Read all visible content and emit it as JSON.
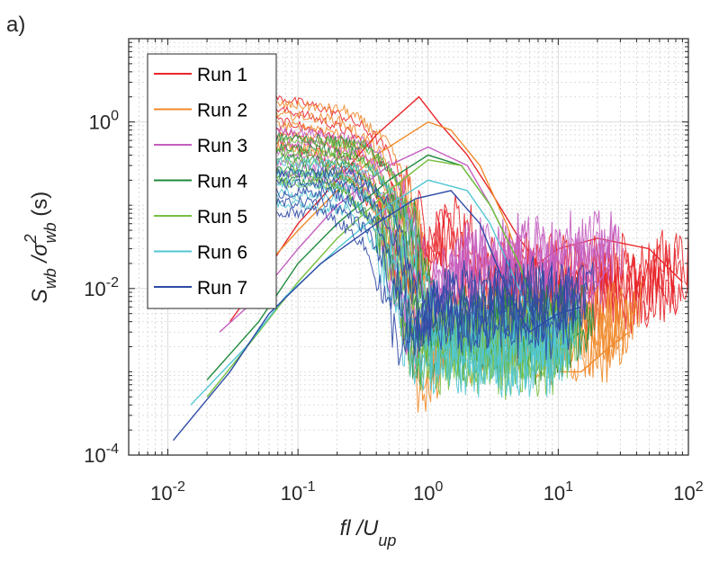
{
  "panel_label": "a)",
  "chart_data": {
    "type": "line",
    "xscale": "log",
    "yscale": "log",
    "xlim": [
      0.005,
      100
    ],
    "ylim": [
      0.0001,
      10
    ],
    "grid": "major and minor",
    "legend_placement": "top-left",
    "xlabel": {
      "main": "fl /U",
      "sub": "up"
    },
    "ylabel": {
      "main1": "S",
      "sub1": "wb",
      "main2": " /σ",
      "sup2": "2",
      "sub2": "wb",
      "tail": " (s)"
    },
    "xticks": [
      {
        "value": 0.01,
        "base": "10",
        "exp": "-2"
      },
      {
        "value": 0.1,
        "base": "10",
        "exp": "-1"
      },
      {
        "value": 1,
        "base": "10",
        "exp": "0"
      },
      {
        "value": 10,
        "base": "10",
        "exp": "1"
      },
      {
        "value": 100,
        "base": "10",
        "exp": "2"
      }
    ],
    "yticks": [
      {
        "value": 0.0001,
        "base": "10",
        "exp": "-4"
      },
      {
        "value": 0.01,
        "base": "10",
        "exp": "-2"
      },
      {
        "value": 1,
        "base": "10",
        "exp": "0"
      }
    ],
    "series": [
      {
        "name": "Run 1",
        "color": "#e8262b",
        "x": [
          0.03,
          0.05,
          0.1,
          0.2,
          0.4,
          0.85,
          1.2,
          2,
          3,
          5,
          7,
          10,
          20,
          50,
          90
        ],
        "y": [
          0.004,
          0.012,
          0.06,
          0.2,
          0.7,
          2.0,
          1.0,
          0.4,
          0.15,
          0.04,
          0.02,
          0.03,
          0.04,
          0.03,
          0.012
        ]
      },
      {
        "name": "Run 2",
        "color": "#f08a2b",
        "x": [
          0.03,
          0.05,
          0.1,
          0.2,
          0.4,
          1.0,
          1.5,
          2.5,
          4,
          6,
          8,
          10,
          15,
          25,
          35
        ],
        "y": [
          0.006,
          0.015,
          0.05,
          0.15,
          0.4,
          1.0,
          0.8,
          0.3,
          0.06,
          0.01,
          0.003,
          0.001,
          0.001,
          0.002,
          0.003
        ]
      },
      {
        "name": "Run 3",
        "color": "#c55ec0",
        "x": [
          0.025,
          0.05,
          0.1,
          0.2,
          0.5,
          1.0,
          2,
          3,
          5,
          7,
          10,
          15,
          25
        ],
        "y": [
          0.003,
          0.008,
          0.03,
          0.1,
          0.3,
          0.5,
          0.3,
          0.1,
          0.02,
          0.005,
          0.003,
          0.005,
          0.02
        ]
      },
      {
        "name": "Run 4",
        "color": "#1f8a3c",
        "x": [
          0.02,
          0.05,
          0.1,
          0.2,
          0.5,
          1.0,
          1.8,
          3,
          5,
          7,
          10,
          15
        ],
        "y": [
          0.0008,
          0.004,
          0.02,
          0.06,
          0.2,
          0.4,
          0.3,
          0.1,
          0.02,
          0.005,
          0.002,
          0.003
        ]
      },
      {
        "name": "Run 5",
        "color": "#77c043",
        "x": [
          0.02,
          0.05,
          0.1,
          0.2,
          0.5,
          1.0,
          1.8,
          3,
          5,
          7,
          10,
          12
        ],
        "y": [
          0.0005,
          0.003,
          0.012,
          0.04,
          0.15,
          0.35,
          0.3,
          0.1,
          0.02,
          0.004,
          0.002,
          0.002
        ]
      },
      {
        "name": "Run 6",
        "color": "#52c7d4",
        "x": [
          0.015,
          0.04,
          0.08,
          0.2,
          0.5,
          1.0,
          2,
          3,
          5,
          7,
          10,
          12
        ],
        "y": [
          0.0004,
          0.002,
          0.008,
          0.03,
          0.1,
          0.2,
          0.15,
          0.06,
          0.01,
          0.003,
          0.002,
          0.002
        ]
      },
      {
        "name": "Run 7",
        "color": "#2d4aa6",
        "x": [
          0.011,
          0.03,
          0.06,
          0.15,
          0.4,
          0.8,
          1.5,
          2.5,
          4,
          6,
          10,
          15
        ],
        "y": [
          0.00015,
          0.001,
          0.005,
          0.02,
          0.06,
          0.12,
          0.15,
          0.06,
          0.01,
          0.003,
          0.005,
          0.006
        ]
      }
    ]
  }
}
